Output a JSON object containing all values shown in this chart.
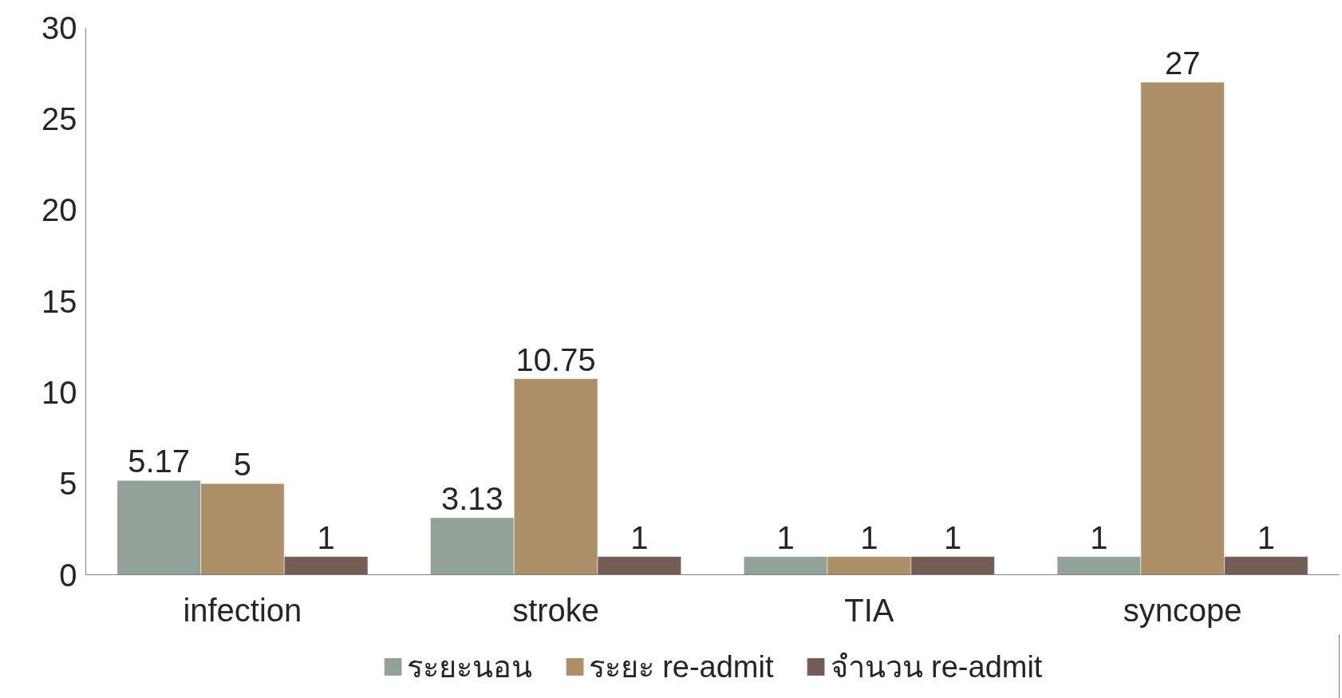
{
  "chart_data": {
    "type": "bar",
    "categories": [
      "infection",
      "stroke",
      "TIA",
      "syncope"
    ],
    "series": [
      {
        "name": "ระยะนอน",
        "color": "#93a299",
        "values": [
          5.17,
          3.13,
          1,
          1
        ]
      },
      {
        "name": "ระยะ re-admit",
        "color": "#ad8f67",
        "values": [
          5,
          10.75,
          1,
          27
        ]
      },
      {
        "name": "จำนวน re-admit",
        "color": "#725e55",
        "values": [
          1,
          1,
          1,
          1
        ]
      }
    ],
    "ylim": [
      0,
      30
    ],
    "yticks": [
      0,
      5,
      10,
      15,
      20,
      25,
      30
    ],
    "data_labels": true,
    "grid": false,
    "legend": "bottom"
  }
}
